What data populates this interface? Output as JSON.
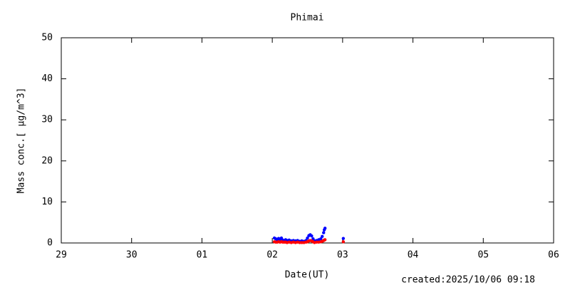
{
  "chart_data": {
    "type": "scatter",
    "title": "Phimai",
    "x_label": "Date(UT)",
    "y_label": "Mass conc.[ μg/m^3]",
    "annotation": "created:2025/10/06 09:18",
    "xlim": [
      0,
      7
    ],
    "xticks": [
      {
        "value": 0,
        "label": "29"
      },
      {
        "value": 1,
        "label": "30"
      },
      {
        "value": 2,
        "label": "01"
      },
      {
        "value": 3,
        "label": "02"
      },
      {
        "value": 4,
        "label": "03"
      },
      {
        "value": 5,
        "label": "04"
      },
      {
        "value": 6,
        "label": "05"
      },
      {
        "value": 7,
        "label": "06"
      }
    ],
    "ylim": [
      0,
      50
    ],
    "yticks": [
      0,
      10,
      20,
      30,
      40,
      50
    ],
    "series": [
      {
        "color": "#0000ff",
        "x": [
          3.03,
          3.05,
          3.07,
          3.09,
          3.11,
          3.13,
          3.15,
          3.17,
          3.19,
          3.21,
          3.24,
          3.27,
          3.3,
          3.33,
          3.36,
          3.39,
          3.42,
          3.45,
          3.48,
          3.5,
          3.52,
          3.54,
          3.56,
          3.58,
          3.6,
          3.63,
          3.66,
          3.69,
          3.71,
          3.73,
          3.74,
          3.75,
          4.01
        ],
        "values": [
          1.2,
          1.0,
          0.8,
          1.1,
          0.9,
          1.2,
          0.7,
          0.6,
          0.8,
          0.6,
          0.7,
          0.5,
          0.6,
          0.5,
          0.6,
          0.4,
          0.5,
          0.4,
          0.6,
          1.2,
          1.8,
          2.0,
          1.7,
          1.0,
          0.5,
          0.6,
          0.8,
          1.0,
          1.6,
          2.5,
          3.2,
          3.6,
          1.1
        ]
      },
      {
        "color": "#ff0000",
        "x": [
          3.03,
          3.05,
          3.07,
          3.09,
          3.11,
          3.13,
          3.15,
          3.17,
          3.19,
          3.21,
          3.24,
          3.27,
          3.3,
          3.33,
          3.36,
          3.39,
          3.42,
          3.45,
          3.48,
          3.5,
          3.52,
          3.54,
          3.56,
          3.58,
          3.6,
          3.63,
          3.66,
          3.69,
          3.71,
          3.73,
          3.74,
          3.75,
          4.01
        ],
        "values": [
          0.3,
          0.2,
          0.2,
          0.3,
          0.2,
          0.3,
          0.2,
          0.2,
          0.2,
          0.1,
          0.2,
          0.1,
          0.2,
          0.1,
          0.2,
          0.1,
          0.1,
          0.1,
          0.2,
          0.3,
          0.5,
          0.6,
          0.5,
          0.3,
          0.1,
          0.2,
          0.2,
          0.3,
          0.4,
          0.6,
          0.7,
          0.8,
          0.3
        ]
      }
    ]
  }
}
